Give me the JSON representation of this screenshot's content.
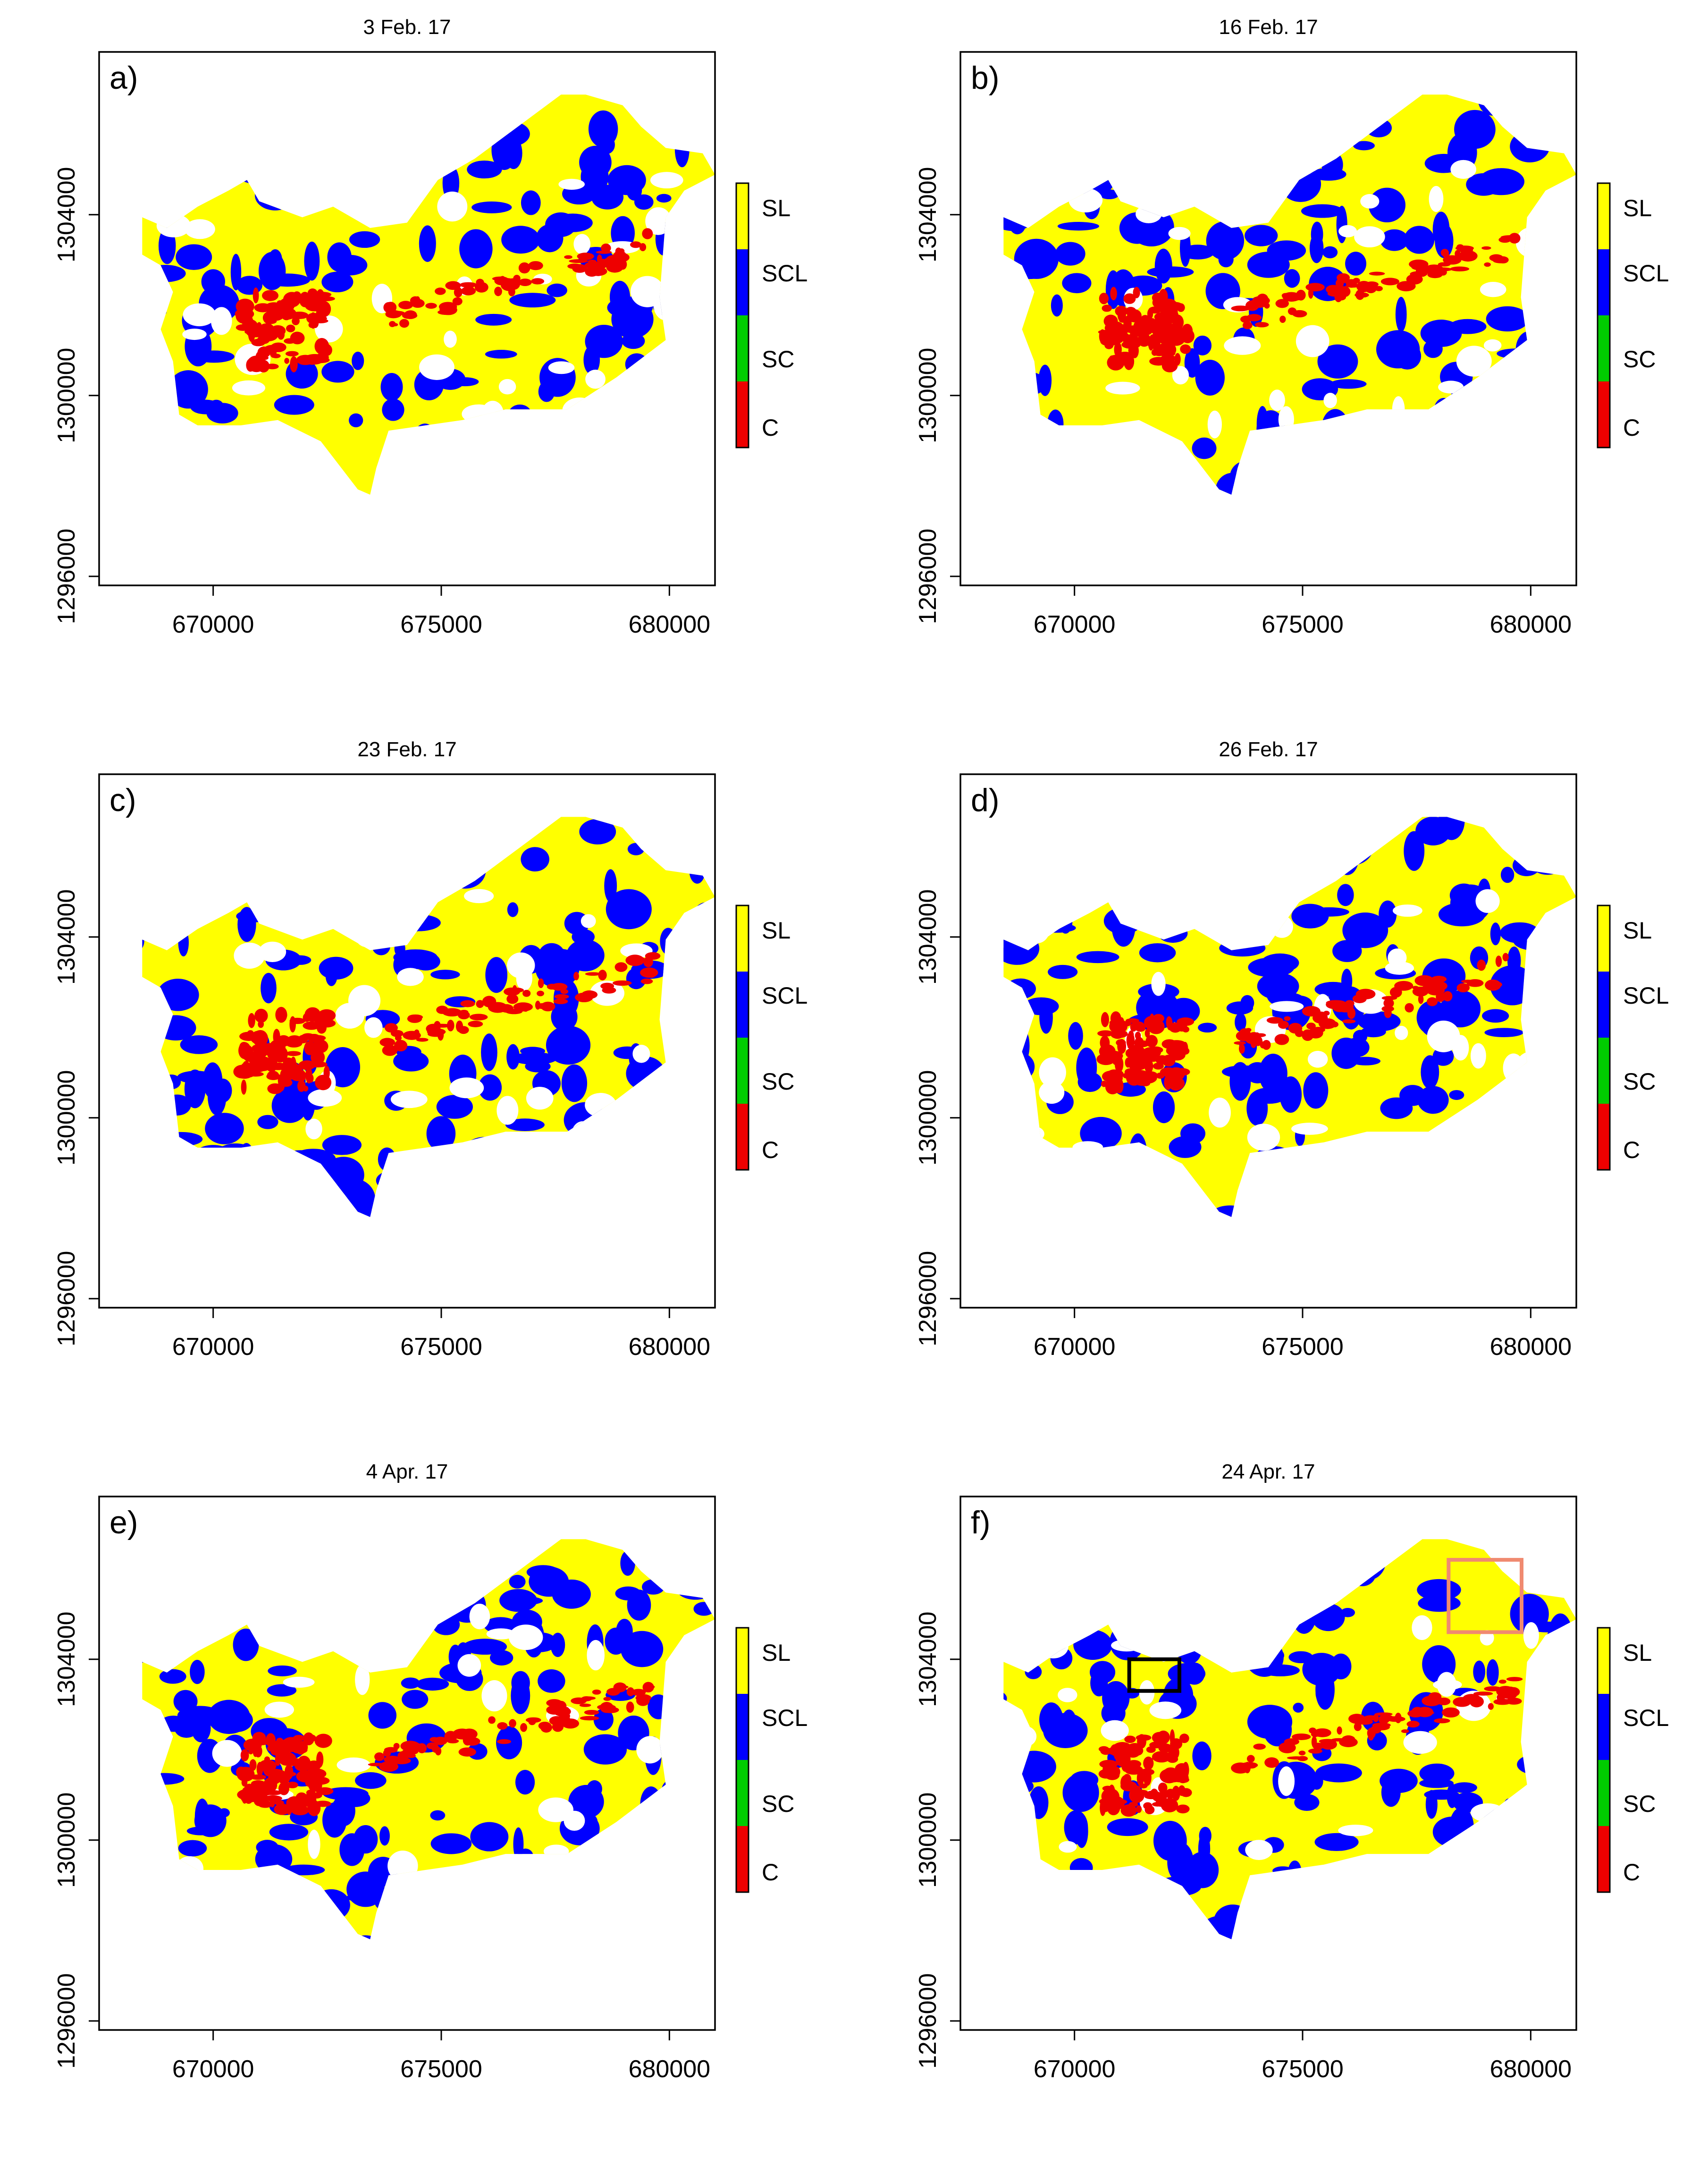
{
  "figure": {
    "description_free": true,
    "xticks": [
      670000,
      675000,
      680000
    ],
    "yticks": [
      1296000,
      1300000,
      1304000
    ],
    "legend_classes": [
      {
        "label": "SL",
        "color": "#ffff00"
      },
      {
        "label": "SCL",
        "color": "#0000ff"
      },
      {
        "label": "SC",
        "color": "#00cc00"
      },
      {
        "label": "C",
        "color": "#ee0000"
      }
    ]
  },
  "chart_data": [
    {
      "type": "heatmap",
      "panel": "a)",
      "title": "3 Feb. 17",
      "xlim": [
        667500,
        681000
      ],
      "ylim": [
        1295800,
        1307600
      ],
      "xticks": [
        670000,
        675000,
        680000
      ],
      "yticks": [
        1296000,
        1300000,
        1304000
      ],
      "classes": [
        "SL",
        "SCL",
        "SC",
        "C"
      ],
      "legend_position": "right"
    },
    {
      "type": "heatmap",
      "panel": "b)",
      "title": "16 Feb. 17",
      "xlim": [
        667500,
        681000
      ],
      "ylim": [
        1295800,
        1307600
      ],
      "xticks": [
        670000,
        675000,
        680000
      ],
      "yticks": [
        1296000,
        1300000,
        1304000
      ],
      "classes": [
        "SL",
        "SCL",
        "SC",
        "C"
      ],
      "legend_position": "right"
    },
    {
      "type": "heatmap",
      "panel": "c)",
      "title": "23 Feb. 17",
      "xlim": [
        667500,
        681000
      ],
      "ylim": [
        1295800,
        1307600
      ],
      "xticks": [
        670000,
        675000,
        680000
      ],
      "yticks": [
        1296000,
        1300000,
        1304000
      ],
      "classes": [
        "SL",
        "SCL",
        "SC",
        "C"
      ],
      "legend_position": "right"
    },
    {
      "type": "heatmap",
      "panel": "d)",
      "title": "26 Feb. 17",
      "xlim": [
        667500,
        681000
      ],
      "ylim": [
        1295800,
        1307600
      ],
      "xticks": [
        670000,
        675000,
        680000
      ],
      "yticks": [
        1296000,
        1300000,
        1304000
      ],
      "classes": [
        "SL",
        "SCL",
        "SC",
        "C"
      ],
      "legend_position": "right"
    },
    {
      "type": "heatmap",
      "panel": "e)",
      "title": "4 Apr. 17",
      "xlim": [
        667500,
        681000
      ],
      "ylim": [
        1295800,
        1307600
      ],
      "xticks": [
        670000,
        675000,
        680000
      ],
      "yticks": [
        1296000,
        1300000,
        1304000
      ],
      "classes": [
        "SL",
        "SCL",
        "SC",
        "C"
      ],
      "legend_position": "right"
    },
    {
      "type": "heatmap",
      "panel": "f)",
      "title": "24 Apr. 17",
      "xlim": [
        667500,
        681000
      ],
      "ylim": [
        1295800,
        1307600
      ],
      "xticks": [
        670000,
        675000,
        680000
      ],
      "yticks": [
        1296000,
        1300000,
        1304000
      ],
      "classes": [
        "SL",
        "SCL",
        "SC",
        "C"
      ],
      "legend_position": "right",
      "highlight_boxes": [
        {
          "color": "#000000",
          "x": [
            671200,
            672300
          ],
          "y": [
            1303300,
            1304000
          ]
        },
        {
          "color": "#f08a70",
          "x": [
            678200,
            679800
          ],
          "y": [
            1304600,
            1306200
          ]
        }
      ]
    }
  ]
}
